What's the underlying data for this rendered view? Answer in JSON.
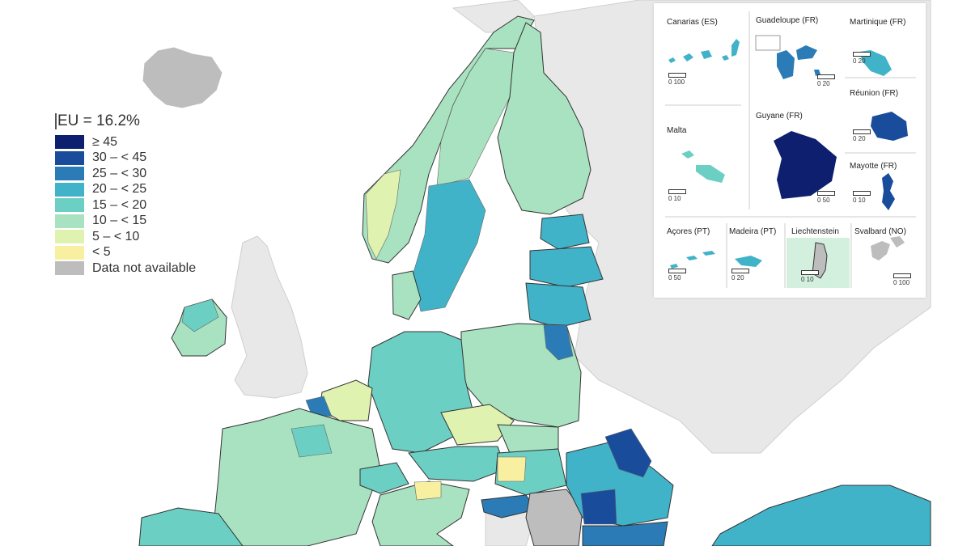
{
  "legend": {
    "title": "EU = 16.2%",
    "items": [
      {
        "label": "≥ 45",
        "color": "#0d1f6e"
      },
      {
        "label": "30 – < 45",
        "color": "#1a4c9c"
      },
      {
        "label": "25 – < 30",
        "color": "#2b7cb6"
      },
      {
        "label": "20 – < 25",
        "color": "#41b3c9"
      },
      {
        "label": "15 – < 20",
        "color": "#6ccfc3"
      },
      {
        "label": "10 – < 15",
        "color": "#a8e2c0"
      },
      {
        "label": "5 – < 10",
        "color": "#e0f2b0"
      },
      {
        "label": "< 5",
        "color": "#f8f0a0"
      },
      {
        "label": "Data not available",
        "color": "#bdbdbd"
      }
    ]
  },
  "insets": [
    {
      "name": "Canarias (ES)",
      "scale": "0  100"
    },
    {
      "name": "Guadeloupe (FR)",
      "scale": "0  20"
    },
    {
      "name": "Martinique (FR)",
      "scale": "0  20"
    },
    {
      "name": "Réunion (FR)",
      "scale": "0  20"
    },
    {
      "name": "Malta",
      "scale": "0  10"
    },
    {
      "name": "Guyane (FR)",
      "scale": "0 50"
    },
    {
      "name": "Mayotte (FR)",
      "scale": "0  10"
    },
    {
      "name": "Açores (PT)",
      "scale": "0  50"
    },
    {
      "name": "Madeira (PT)",
      "scale": "0  20"
    },
    {
      "name": "Liechtenstein",
      "scale": "0  10"
    },
    {
      "name": "Svalbard (NO)",
      "scale": "0 100"
    }
  ],
  "colors": {
    "sea": "#ffffff",
    "non_eu_land": "#e8e8e8",
    "border": "#333333"
  }
}
